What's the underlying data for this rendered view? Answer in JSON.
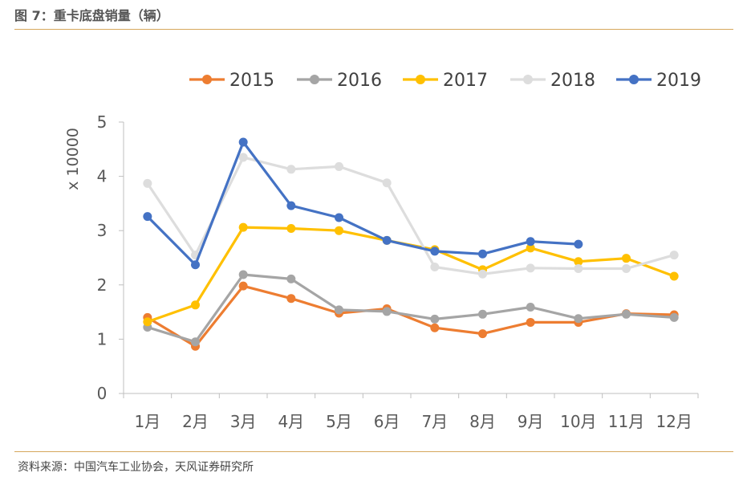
{
  "figure": {
    "title": "图 7：重卡底盘销量（辆）",
    "source": "资料来源：中国汽车工业协会，天风证券研究所"
  },
  "chart_data": {
    "type": "line",
    "title": "",
    "xlabel": "",
    "ylabel": "x 10000",
    "ylim": [
      0,
      5
    ],
    "yticks": [
      "0",
      "1",
      "2",
      "3",
      "4",
      "5"
    ],
    "categories": [
      "1月",
      "2月",
      "3月",
      "4月",
      "5月",
      "6月",
      "7月",
      "8月",
      "9月",
      "10月",
      "11月",
      "12月"
    ],
    "grid": false,
    "legend_position": "top",
    "series": [
      {
        "name": "2015",
        "color": "#ED7D31",
        "values": [
          1.4,
          0.87,
          1.98,
          1.75,
          1.48,
          1.56,
          1.21,
          1.1,
          1.31,
          1.31,
          1.47,
          1.45
        ]
      },
      {
        "name": "2016",
        "color": "#A5A5A5",
        "values": [
          1.22,
          0.95,
          2.19,
          2.11,
          1.54,
          1.51,
          1.37,
          1.46,
          1.59,
          1.38,
          1.46,
          1.4
        ]
      },
      {
        "name": "2017",
        "color": "#FFC000",
        "values": [
          1.32,
          1.63,
          3.06,
          3.04,
          3.0,
          2.82,
          2.65,
          2.28,
          2.68,
          2.43,
          2.49,
          2.16
        ]
      },
      {
        "name": "2018",
        "color": "#DDDDDD",
        "values": [
          3.87,
          2.55,
          4.35,
          4.13,
          4.18,
          3.88,
          2.33,
          2.2,
          2.31,
          2.3,
          2.3,
          2.55
        ]
      },
      {
        "name": "2019",
        "color": "#4472C4",
        "values": [
          3.26,
          2.37,
          4.63,
          3.46,
          3.24,
          2.82,
          2.62,
          2.57,
          2.8,
          2.75,
          null,
          null
        ]
      }
    ]
  }
}
